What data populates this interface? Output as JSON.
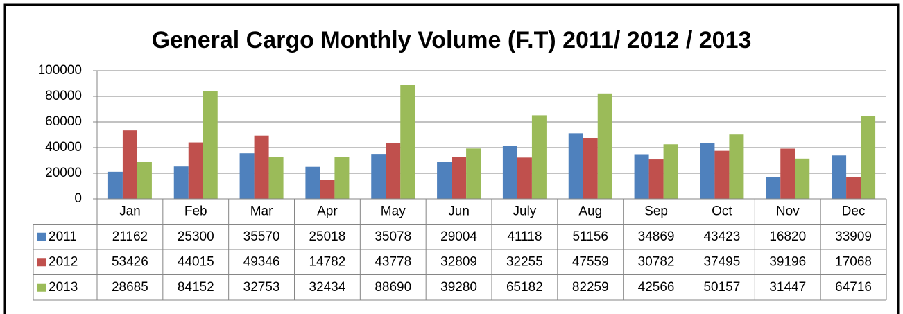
{
  "chart_data": {
    "type": "bar",
    "title": "General Cargo Monthly Volume (F.T) 2011/ 2012 / 2013",
    "categories": [
      "Jan",
      "Feb",
      "Mar",
      "Apr",
      "May",
      "Jun",
      "July",
      "Aug",
      "Sep",
      "Oct",
      "Nov",
      "Dec"
    ],
    "series": [
      {
        "name": "2011",
        "color": "#4f81bd",
        "values": [
          21162,
          25300,
          35570,
          25018,
          35078,
          29004,
          41118,
          51156,
          34869,
          43423,
          16820,
          33909
        ]
      },
      {
        "name": "2012",
        "color": "#c0504d",
        "values": [
          53426,
          44015,
          49346,
          14782,
          43778,
          32809,
          32255,
          47559,
          30782,
          37495,
          39196,
          17068
        ]
      },
      {
        "name": "2013",
        "color": "#9bbb59",
        "values": [
          28685,
          84152,
          32753,
          32434,
          88690,
          39280,
          65182,
          82259,
          42566,
          50157,
          31447,
          64716
        ]
      }
    ],
    "ylim": [
      0,
      100000
    ],
    "yticks": [
      0,
      20000,
      40000,
      60000,
      80000,
      100000
    ],
    "grid": true
  }
}
